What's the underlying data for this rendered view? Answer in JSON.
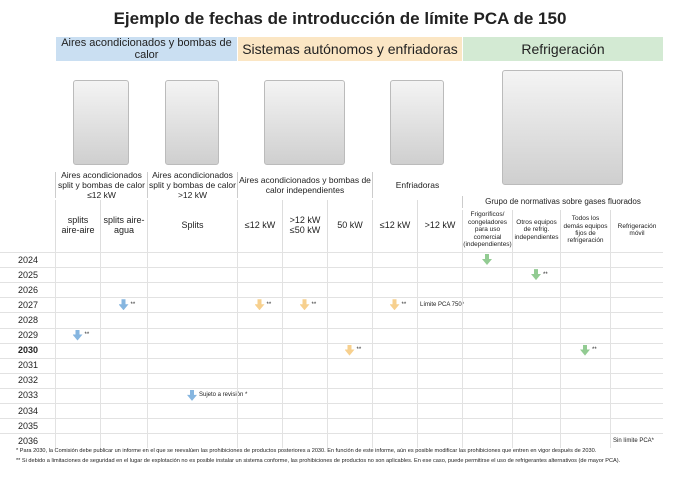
{
  "title": "Ejemplo de fechas de introducción de límite PCA de 150",
  "highlight_year": "2030",
  "years": [
    "2024",
    "2025",
    "2026",
    "2027",
    "2028",
    "2029",
    "2030",
    "2031",
    "2032",
    "2033",
    "2034",
    "2035",
    "2036"
  ],
  "groups": [
    {
      "name": "Aires acondicionados y bombas de calor",
      "color": "#cadff2",
      "arrow_color": "#86b6e0",
      "subgroups": [
        {
          "caption": "Aires acondicionados split y bombas de calor ≤12 kW",
          "columns": [
            {
              "label": "splits aire-aire",
              "marks": [
                {
                  "year": "2029",
                  "note": "**"
                }
              ]
            },
            {
              "label": "splits aire-agua",
              "marks": [
                {
                  "year": "2027",
                  "note": "**"
                }
              ]
            }
          ]
        },
        {
          "caption": "Aires acondicionados split y bombas de calor >12 kW",
          "columns": [
            {
              "label": "Splits",
              "marks": [
                {
                  "year": "2033",
                  "note": "Sujeto a revisión *"
                }
              ]
            }
          ]
        }
      ]
    },
    {
      "name": "Sistemas autónomos y enfriadoras",
      "color": "#fbe6c4",
      "arrow_color": "#f7d08e",
      "subgroups": [
        {
          "caption": "Aires acondicionados y bombas de calor independientes",
          "columns": [
            {
              "label": "≤12 kW",
              "marks": [
                {
                  "year": "2027",
                  "note": "**"
                }
              ]
            },
            {
              "label": ">12 kW ≤50 kW",
              "marks": [
                {
                  "year": "2027",
                  "note": "**"
                }
              ]
            },
            {
              "label": "50 kW",
              "marks": [
                {
                  "year": "2030",
                  "note": "**"
                }
              ]
            }
          ]
        },
        {
          "caption": "Enfriadoras",
          "columns": [
            {
              "label": "≤12 kW",
              "marks": [
                {
                  "year": "2027",
                  "note": "**"
                }
              ]
            },
            {
              "label": ">12 kW",
              "marks": [
                {
                  "year": "2027",
                  "text": "Límite PCA 750*"
                }
              ]
            }
          ]
        }
      ]
    },
    {
      "name": "Refrigeración",
      "color": "#d3ead3",
      "arrow_color": "#92cb92",
      "subgroups": [
        {
          "caption": "Grupo de normativas sobre gases fluorados",
          "columns": [
            {
              "label": "Frigoríficos/ congeladores para uso comercial (independientes)",
              "marks": [
                {
                  "year": "2024"
                }
              ]
            },
            {
              "label": "Otros equipos de refrig. independientes",
              "marks": [
                {
                  "year": "2025",
                  "note": "**"
                }
              ]
            },
            {
              "label": "Todos los demás equipos fijos de refrigeración",
              "marks": [
                {
                  "year": "2030",
                  "note": "**"
                }
              ]
            },
            {
              "label": "Refrigeración móvil",
              "marks": [
                {
                  "year": "2036",
                  "text": "Sin límite PCA*"
                }
              ]
            }
          ]
        }
      ]
    }
  ],
  "footnotes": [
    "* Para 2030, la Comisión debe publicar un informe en el que se reevalúen las prohibiciones de productos posteriores a 2030. En función de este informe, aún es posible modificar las prohibiciones que entren en vigor después de 2030.",
    "** Si debido a limitaciones de seguridad en el lugar de explotación no es posible instalar un sistema conforme, las prohibiciones de productos no son aplicables. En ese caso, puede permitirse el uso de refrigerantes alternativos (de mayor PCA)."
  ]
}
